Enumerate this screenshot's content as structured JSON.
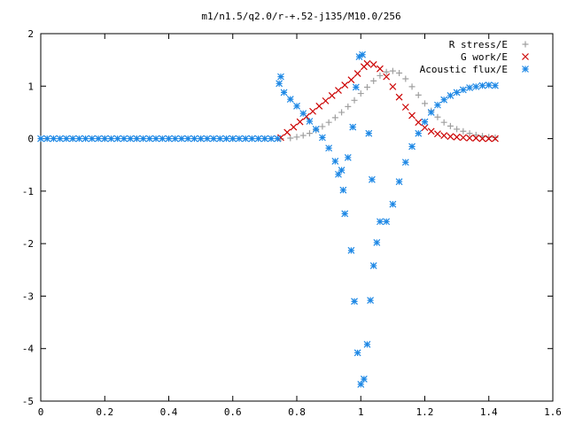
{
  "chart_data": {
    "type": "scatter",
    "title": "m1/n1.5/q2.0/r-+.52-j135/M10.0/256",
    "xlabel": "",
    "ylabel": "",
    "xlim": [
      0,
      1.6
    ],
    "ylim": [
      -5,
      2
    ],
    "x_ticks": [
      "0",
      "0.2",
      "0.4",
      "0.6",
      "0.8",
      "1",
      "1.2",
      "1.4",
      "1.6"
    ],
    "y_ticks": [
      "2",
      "1",
      "0",
      "-1",
      "-2",
      "-3",
      "-4",
      "-5"
    ],
    "grid": false,
    "legend_position": "top-right",
    "series": [
      {
        "name": "R stress/E",
        "marker": "plus",
        "color": "#a0a0a0",
        "points": [
          [
            0.0,
            0
          ],
          [
            0.1,
            0
          ],
          [
            0.2,
            0
          ],
          [
            0.3,
            0
          ],
          [
            0.4,
            0
          ],
          [
            0.5,
            0
          ],
          [
            0.6,
            0
          ],
          [
            0.7,
            0
          ],
          [
            0.75,
            0.0
          ],
          [
            0.78,
            0.01
          ],
          [
            0.8,
            0.03
          ],
          [
            0.82,
            0.06
          ],
          [
            0.84,
            0.1
          ],
          [
            0.86,
            0.16
          ],
          [
            0.88,
            0.23
          ],
          [
            0.9,
            0.31
          ],
          [
            0.92,
            0.4
          ],
          [
            0.94,
            0.5
          ],
          [
            0.96,
            0.61
          ],
          [
            0.98,
            0.73
          ],
          [
            1.0,
            0.86
          ],
          [
            1.02,
            0.98
          ],
          [
            1.04,
            1.1
          ],
          [
            1.06,
            1.2
          ],
          [
            1.08,
            1.27
          ],
          [
            1.1,
            1.29
          ],
          [
            1.12,
            1.25
          ],
          [
            1.14,
            1.14
          ],
          [
            1.16,
            0.99
          ],
          [
            1.18,
            0.83
          ],
          [
            1.2,
            0.67
          ],
          [
            1.22,
            0.53
          ],
          [
            1.24,
            0.41
          ],
          [
            1.26,
            0.31
          ],
          [
            1.28,
            0.24
          ],
          [
            1.3,
            0.18
          ],
          [
            1.32,
            0.14
          ],
          [
            1.34,
            0.1
          ],
          [
            1.36,
            0.07
          ],
          [
            1.38,
            0.05
          ],
          [
            1.4,
            0.03
          ],
          [
            1.42,
            0.02
          ]
        ]
      },
      {
        "name": "G work/E",
        "marker": "cross",
        "color": "#cc0000",
        "points": [
          [
            0.75,
            0.02
          ],
          [
            0.77,
            0.12
          ],
          [
            0.79,
            0.22
          ],
          [
            0.81,
            0.32
          ],
          [
            0.83,
            0.42
          ],
          [
            0.85,
            0.52
          ],
          [
            0.87,
            0.62
          ],
          [
            0.89,
            0.72
          ],
          [
            0.91,
            0.82
          ],
          [
            0.93,
            0.92
          ],
          [
            0.95,
            1.02
          ],
          [
            0.97,
            1.12
          ],
          [
            0.99,
            1.24
          ],
          [
            1.01,
            1.37
          ],
          [
            1.02,
            1.43
          ],
          [
            1.04,
            1.41
          ],
          [
            1.06,
            1.33
          ],
          [
            1.08,
            1.18
          ],
          [
            1.1,
            0.99
          ],
          [
            1.12,
            0.79
          ],
          [
            1.14,
            0.6
          ],
          [
            1.16,
            0.44
          ],
          [
            1.18,
            0.31
          ],
          [
            1.2,
            0.21
          ],
          [
            1.22,
            0.14
          ],
          [
            1.24,
            0.09
          ],
          [
            1.26,
            0.06
          ],
          [
            1.28,
            0.04
          ],
          [
            1.3,
            0.03
          ],
          [
            1.32,
            0.02
          ],
          [
            1.34,
            0.01
          ],
          [
            1.36,
            0.01
          ],
          [
            1.38,
            0.0
          ],
          [
            1.4,
            0.0
          ],
          [
            1.42,
            0.0
          ]
        ]
      },
      {
        "name": "Acoustic flux/E",
        "marker": "star",
        "color": "#1e88e5",
        "points": [
          [
            0.0,
            0
          ],
          [
            0.02,
            0
          ],
          [
            0.04,
            0
          ],
          [
            0.06,
            0
          ],
          [
            0.08,
            0
          ],
          [
            0.1,
            0
          ],
          [
            0.12,
            0
          ],
          [
            0.14,
            0
          ],
          [
            0.16,
            0
          ],
          [
            0.18,
            0
          ],
          [
            0.2,
            0
          ],
          [
            0.22,
            0
          ],
          [
            0.24,
            0
          ],
          [
            0.26,
            0
          ],
          [
            0.28,
            0
          ],
          [
            0.3,
            0
          ],
          [
            0.32,
            0
          ],
          [
            0.34,
            0
          ],
          [
            0.36,
            0
          ],
          [
            0.38,
            0
          ],
          [
            0.4,
            0
          ],
          [
            0.42,
            0
          ],
          [
            0.44,
            0
          ],
          [
            0.46,
            0
          ],
          [
            0.48,
            0
          ],
          [
            0.5,
            0
          ],
          [
            0.52,
            0
          ],
          [
            0.54,
            0
          ],
          [
            0.56,
            0
          ],
          [
            0.58,
            0
          ],
          [
            0.6,
            0
          ],
          [
            0.62,
            0
          ],
          [
            0.64,
            0
          ],
          [
            0.66,
            0
          ],
          [
            0.68,
            0
          ],
          [
            0.7,
            0
          ],
          [
            0.72,
            0
          ],
          [
            0.74,
            0
          ],
          [
            0.745,
            1.05
          ],
          [
            0.75,
            1.18
          ],
          [
            0.76,
            0.88
          ],
          [
            0.78,
            0.75
          ],
          [
            0.8,
            0.62
          ],
          [
            0.82,
            0.48
          ],
          [
            0.84,
            0.33
          ],
          [
            0.86,
            0.18
          ],
          [
            0.88,
            0.02
          ],
          [
            0.9,
            -0.18
          ],
          [
            0.92,
            -0.43
          ],
          [
            0.93,
            -0.68
          ],
          [
            0.94,
            -0.6
          ],
          [
            0.945,
            -0.98
          ],
          [
            0.95,
            -1.43
          ],
          [
            0.96,
            -0.36
          ],
          [
            0.97,
            -2.13
          ],
          [
            0.975,
            0.22
          ],
          [
            0.98,
            -3.1
          ],
          [
            0.985,
            0.98
          ],
          [
            0.99,
            -4.08
          ],
          [
            0.995,
            1.56
          ],
          [
            1.0,
            -4.68
          ],
          [
            1.005,
            1.6
          ],
          [
            1.01,
            -4.58
          ],
          [
            1.02,
            -3.92
          ],
          [
            1.025,
            0.1
          ],
          [
            1.03,
            -3.08
          ],
          [
            1.035,
            -0.78
          ],
          [
            1.04,
            -2.42
          ],
          [
            1.05,
            -1.98
          ],
          [
            1.06,
            -1.58
          ],
          [
            1.08,
            -1.58
          ],
          [
            1.1,
            -1.25
          ],
          [
            1.12,
            -0.82
          ],
          [
            1.14,
            -0.45
          ],
          [
            1.16,
            -0.15
          ],
          [
            1.18,
            0.1
          ],
          [
            1.2,
            0.32
          ],
          [
            1.22,
            0.5
          ],
          [
            1.24,
            0.64
          ],
          [
            1.26,
            0.74
          ],
          [
            1.28,
            0.82
          ],
          [
            1.3,
            0.88
          ],
          [
            1.32,
            0.93
          ],
          [
            1.34,
            0.97
          ],
          [
            1.36,
            0.99
          ],
          [
            1.38,
            1.01
          ],
          [
            1.4,
            1.02
          ],
          [
            1.42,
            1.01
          ]
        ]
      }
    ]
  }
}
